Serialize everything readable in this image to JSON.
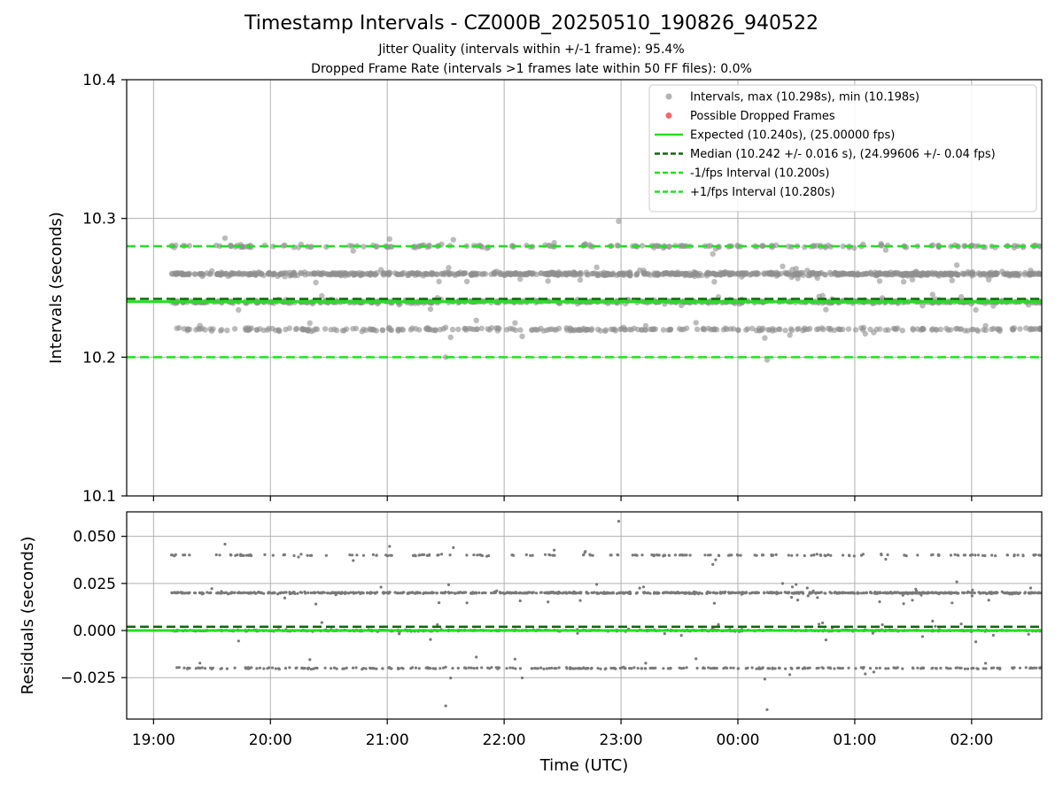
{
  "title": "Timestamp Intervals - CZ000B_20250510_190826_940522",
  "subtitle_lines": [
    "Jitter Quality (intervals within +/-1 frame): 95.4%",
    "Dropped Frame Rate (intervals >1 frames late within 50 FF files): 0.0%"
  ],
  "colors": {
    "points": "#808080",
    "dropped": "#f05050",
    "expected": "#22e022",
    "median": "#116611",
    "grid": "#b0b0b0"
  },
  "chart_data": [
    {
      "type": "scatter",
      "panel": "intervals",
      "ylabel": "Intervals (seconds)",
      "ylim": [
        10.1,
        10.4
      ],
      "yticks": [
        10.1,
        10.2,
        10.3,
        10.4
      ],
      "ytick_labels": [
        "10.1",
        "10.2",
        "10.3",
        "10.4"
      ],
      "xlim_hours": [
        -0.23,
        7.6
      ],
      "xticks_hours": [
        0,
        1,
        2,
        3,
        4,
        5,
        6,
        7
      ],
      "grid": true,
      "legend_position": "top-right",
      "legend": [
        {
          "label": "Intervals, max (10.298s), min (10.198s)",
          "kind": "point",
          "color": "#808080"
        },
        {
          "label": "Possible Dropped Frames",
          "kind": "point",
          "color": "#f05050"
        },
        {
          "label": "Expected (10.240s), (25.00000 fps)",
          "kind": "solid",
          "color": "#22e022"
        },
        {
          "label": "Median (10.242 +/- 0.016 s), (24.99606 +/- 0.04 fps)",
          "kind": "dashed",
          "color": "#116611"
        },
        {
          "label": "-1/fps Interval (10.200s)",
          "kind": "dashed",
          "color": "#22e022"
        },
        {
          "label": "+1/fps Interval (10.280s)",
          "kind": "dashed",
          "color": "#22e022"
        }
      ],
      "reference_lines": [
        {
          "name": "expected",
          "y": 10.24,
          "style": "solid",
          "color": "#22e022"
        },
        {
          "name": "median",
          "y": 10.242,
          "style": "dashed",
          "color": "#116611"
        },
        {
          "name": "minus-one-frame",
          "y": 10.2,
          "style": "dashed",
          "color": "#22e022"
        },
        {
          "name": "plus-one-frame",
          "y": 10.28,
          "style": "dashed",
          "color": "#22e022"
        }
      ],
      "series": [
        {
          "name": "Intervals",
          "x_range_hours": [
            0.15,
            7.6
          ],
          "levels": [
            {
              "y": 10.26,
              "weight": 0.42
            },
            {
              "y": 10.24,
              "weight": 0.33
            },
            {
              "y": 10.22,
              "weight": 0.15
            },
            {
              "y": 10.28,
              "weight": 0.1
            }
          ],
          "extremes": [
            {
              "x_hours": 3.98,
              "y": 10.298
            },
            {
              "x_hours": 5.25,
              "y": 10.198
            },
            {
              "x_hours": 2.5,
              "y": 10.2
            }
          ],
          "max": 10.298,
          "min": 10.198
        }
      ]
    },
    {
      "type": "scatter",
      "panel": "residuals",
      "xlabel": "Time (UTC)",
      "ylabel": "Residuals (seconds)",
      "ylim": [
        -0.047,
        0.063
      ],
      "yticks": [
        -0.025,
        0.0,
        0.025,
        0.05
      ],
      "ytick_labels": [
        "−0.025",
        "0.000",
        "0.025",
        "0.050"
      ],
      "xlim_hours": [
        -0.23,
        7.6
      ],
      "xticks_hours": [
        0,
        1,
        2,
        3,
        4,
        5,
        6,
        7
      ],
      "xtick_labels": [
        "19:00",
        "20:00",
        "21:00",
        "22:00",
        "23:00",
        "00:00",
        "01:00",
        "02:00"
      ],
      "grid": true,
      "reference_lines": [
        {
          "name": "zero",
          "y": 0.0,
          "style": "solid",
          "color": "#22e022"
        },
        {
          "name": "median-offset",
          "y": 0.002,
          "style": "dashed",
          "color": "#116611"
        }
      ],
      "series": [
        {
          "name": "Residuals",
          "x_range_hours": [
            0.15,
            7.6
          ],
          "levels": [
            {
              "y": 0.02,
              "weight": 0.42
            },
            {
              "y": 0.0,
              "weight": 0.33
            },
            {
              "y": -0.02,
              "weight": 0.15
            },
            {
              "y": 0.04,
              "weight": 0.1
            }
          ],
          "extremes": [
            {
              "x_hours": 3.98,
              "y": 0.058
            },
            {
              "x_hours": 5.25,
              "y": -0.042
            },
            {
              "x_hours": 2.5,
              "y": -0.04
            }
          ]
        }
      ]
    }
  ]
}
